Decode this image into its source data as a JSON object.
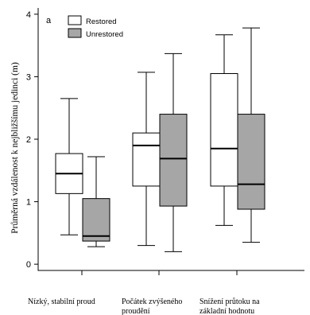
{
  "chart_data": {
    "type": "box",
    "panel_label": "a",
    "ylabel": "Průměrná vzdálenost k nejbližšímu jedinci (m)",
    "ylim": [
      -0.1,
      4.1
    ],
    "yticks": [
      "0",
      "1",
      "2",
      "3",
      "4"
    ],
    "legend": {
      "placement": "top-left",
      "entries": [
        {
          "name": "Restored",
          "color": "#ffffff"
        },
        {
          "name": "Unrestored",
          "color": "#a6a6a6"
        }
      ]
    },
    "categories": [
      [
        "Nízký, stabilní proud"
      ],
      [
        "Počátek zvýšeného",
        "proudění"
      ],
      [
        "Snížení průtoku na",
        "základní hodnotu"
      ]
    ],
    "series": [
      {
        "name": "Restored",
        "color": "#ffffff",
        "boxes": [
          {
            "min": 0.47,
            "q1": 1.13,
            "median": 1.45,
            "q3": 1.77,
            "max": 2.65
          },
          {
            "min": 0.3,
            "q1": 1.25,
            "median": 1.9,
            "q3": 2.1,
            "max": 3.07
          },
          {
            "min": 0.62,
            "q1": 1.25,
            "median": 1.85,
            "q3": 3.05,
            "max": 3.67
          }
        ]
      },
      {
        "name": "Unrestored",
        "color": "#a6a6a6",
        "boxes": [
          {
            "min": 0.28,
            "q1": 0.37,
            "median": 0.45,
            "q3": 1.05,
            "max": 1.72
          },
          {
            "min": 0.2,
            "q1": 0.93,
            "median": 1.69,
            "q3": 2.4,
            "max": 3.37
          },
          {
            "min": 0.35,
            "q1": 0.88,
            "median": 1.28,
            "q3": 2.4,
            "max": 3.78
          }
        ]
      }
    ]
  }
}
